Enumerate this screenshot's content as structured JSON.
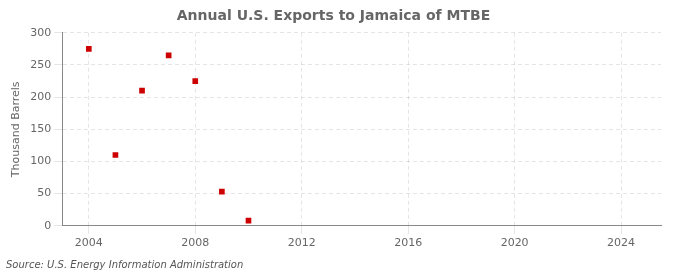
{
  "chart_data": {
    "type": "scatter",
    "title": "Annual U.S. Exports to Jamaica of MTBE",
    "y_label": "Thousand Barrels",
    "annotation": "Source: U.S. Energy Information Administration",
    "x": [
      2004,
      2005,
      2006,
      2007,
      2008,
      2009,
      2010
    ],
    "values": [
      275,
      110,
      210,
      265,
      225,
      53,
      8
    ],
    "color": "#cc0000",
    "marker": "square",
    "xlim": [
      2003.0,
      2025.5
    ],
    "xticks": [
      2004,
      2008,
      2012,
      2016,
      2020,
      2024
    ],
    "ylim": [
      0,
      300
    ],
    "yticks": [
      0,
      50,
      100,
      150,
      200,
      250,
      300
    ],
    "grid": true
  }
}
